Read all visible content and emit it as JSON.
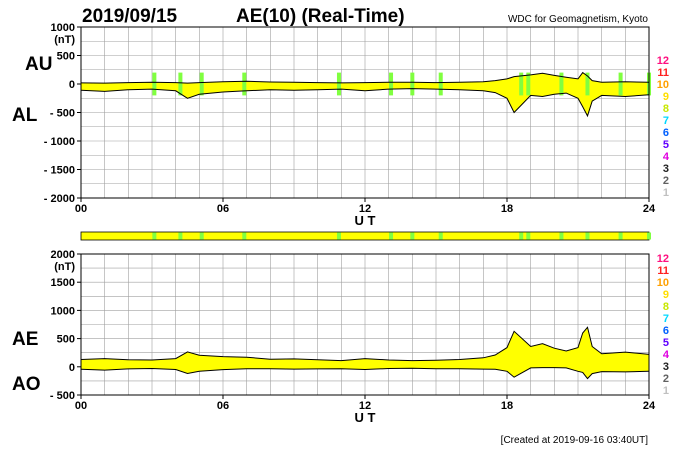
{
  "header": {
    "date": "2019/09/15",
    "title": "AE(10) (Real-Time)",
    "source": "WDC for Geomagnetism, Kyoto"
  },
  "footer": {
    "created": "[Created at 2019-09-16 03:40UT]"
  },
  "station_legend": {
    "labels": [
      "12",
      "11",
      "10",
      "9",
      "8",
      "7",
      "6",
      "5",
      "4",
      "3",
      "2",
      "1"
    ],
    "colors": [
      "#ff1080",
      "#ff2020",
      "#ffa000",
      "#ffdf00",
      "#c8e800",
      "#00d8ff",
      "#0060ff",
      "#6000ff",
      "#e000e0",
      "#202020",
      "#606060",
      "#c0c0c0"
    ]
  },
  "colors": {
    "fill": "#ffff00",
    "station_band": "#80ff40",
    "grid": "#a0a0a0",
    "line": "#000000"
  },
  "chart_data": [
    {
      "type": "area",
      "series_labels": [
        "AU",
        "AL"
      ],
      "xlabel": "U T",
      "ylabel": "(nT)",
      "xlim": [
        0,
        24
      ],
      "ylim": [
        -2000,
        1000
      ],
      "xticks": [
        0,
        6,
        12,
        18,
        24
      ],
      "xtick_labels": [
        "00",
        "06",
        "12",
        "18",
        "24"
      ],
      "yticks": [
        1000,
        500,
        0,
        -500,
        -1000,
        -1500,
        -2000
      ],
      "ytick_labels": [
        "1000",
        "500",
        "0",
        "- 500",
        "- 1000",
        "- 1500",
        "- 2000"
      ],
      "grid": true,
      "x": [
        0,
        1,
        2,
        3,
        4,
        4.5,
        5,
        6,
        7,
        8,
        9,
        10,
        11,
        12,
        13,
        14,
        15,
        16,
        17,
        17.5,
        18,
        18.3,
        19,
        19.5,
        20,
        20.5,
        21,
        21.2,
        21.4,
        21.6,
        22,
        23,
        24
      ],
      "series": [
        {
          "name": "AU",
          "values": [
            20,
            15,
            25,
            30,
            25,
            15,
            25,
            40,
            50,
            35,
            30,
            25,
            20,
            25,
            30,
            30,
            25,
            30,
            40,
            60,
            90,
            130,
            160,
            190,
            150,
            120,
            90,
            200,
            140,
            60,
            30,
            40,
            30
          ]
        },
        {
          "name": "AL",
          "values": [
            -110,
            -130,
            -100,
            -90,
            -120,
            -250,
            -180,
            -140,
            -120,
            -100,
            -110,
            -100,
            -90,
            -120,
            -90,
            -80,
            -90,
            -100,
            -120,
            -150,
            -250,
            -500,
            -200,
            -220,
            -180,
            -160,
            -250,
            -400,
            -560,
            -300,
            -200,
            -220,
            -190
          ]
        }
      ],
      "station_change_hours": [
        3.1,
        4.2,
        5.1,
        6.9,
        10.9,
        13.1,
        14.0,
        15.2,
        18.6,
        18.9,
        20.3,
        21.4,
        22.8,
        24
      ]
    },
    {
      "type": "area",
      "series_labels": [
        "AE",
        "AO"
      ],
      "xlabel": "U T",
      "ylabel": "(nT)",
      "xlim": [
        0,
        24
      ],
      "ylim": [
        -500,
        2000
      ],
      "xticks": [
        0,
        6,
        12,
        18,
        24
      ],
      "xtick_labels": [
        "00",
        "06",
        "12",
        "18",
        "24"
      ],
      "yticks": [
        2000,
        1500,
        1000,
        500,
        0,
        -500
      ],
      "ytick_labels": [
        "2000",
        "1500",
        "1000",
        "500",
        "0",
        "- 500"
      ],
      "grid": true,
      "x": [
        0,
        1,
        2,
        3,
        4,
        4.5,
        5,
        6,
        7,
        8,
        9,
        10,
        11,
        12,
        13,
        14,
        15,
        16,
        17,
        17.5,
        18,
        18.3,
        19,
        19.5,
        20,
        20.5,
        21,
        21.2,
        21.4,
        21.6,
        22,
        23,
        24
      ],
      "series": [
        {
          "name": "AE",
          "values": [
            130,
            145,
            125,
            120,
            145,
            265,
            205,
            180,
            170,
            135,
            140,
            125,
            110,
            145,
            120,
            110,
            115,
            130,
            160,
            210,
            340,
            630,
            360,
            410,
            330,
            280,
            340,
            600,
            700,
            360,
            230,
            260,
            220
          ]
        },
        {
          "name": "AO",
          "values": [
            -45,
            -58,
            -38,
            -30,
            -48,
            -118,
            -78,
            -50,
            -35,
            -33,
            -40,
            -38,
            -35,
            -48,
            -30,
            -25,
            -33,
            -35,
            -40,
            -45,
            -80,
            -185,
            -20,
            -15,
            -15,
            -20,
            -80,
            -100,
            -210,
            -120,
            -85,
            -90,
            -80
          ]
        }
      ]
    }
  ]
}
